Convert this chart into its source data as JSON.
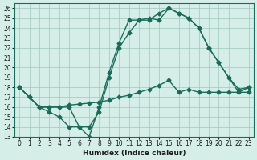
{
  "xlabel": "Humidex (Indice chaleur)",
  "ylabel": "",
  "bg_color": "#d6eee8",
  "line_color": "#1a6b5a",
  "xlim": [
    -0.5,
    23.5
  ],
  "ylim": [
    13,
    26.5
  ],
  "yticks": [
    13,
    14,
    15,
    16,
    17,
    18,
    19,
    20,
    21,
    22,
    23,
    24,
    25,
    26
  ],
  "xticks": [
    0,
    1,
    2,
    3,
    4,
    5,
    6,
    7,
    8,
    9,
    10,
    11,
    12,
    13,
    14,
    15,
    16,
    17,
    18,
    19,
    20,
    21,
    22,
    23
  ],
  "line1_x": [
    0,
    1,
    2,
    3,
    4,
    5,
    6,
    7,
    8,
    9,
    10,
    11,
    12,
    13,
    14,
    15,
    16,
    17,
    18,
    19,
    20,
    21,
    22,
    23
  ],
  "line1_y": [
    18,
    17,
    16,
    16,
    16,
    16,
    14,
    13,
    16,
    19.5,
    22.5,
    24.8,
    24.8,
    25,
    24.8,
    26,
    25.5,
    25,
    24,
    22,
    20.5,
    19,
    17.8,
    18
  ],
  "line2_x": [
    0,
    2,
    3,
    4,
    5,
    6,
    7,
    8,
    9,
    10,
    11,
    12,
    13,
    14,
    15,
    16,
    17,
    18,
    19,
    20,
    21,
    22,
    23
  ],
  "line2_y": [
    18,
    16,
    15.5,
    15,
    14,
    14,
    14,
    15.5,
    19,
    22,
    23.5,
    24.8,
    24.8,
    25.5,
    26,
    25.5,
    25,
    24,
    22,
    20.5,
    19,
    17.5,
    18
  ],
  "line3_x": [
    0,
    1,
    2,
    3,
    4,
    5,
    6,
    7,
    8,
    9,
    10,
    11,
    12,
    13,
    14,
    15,
    16,
    17,
    18,
    19,
    20,
    21,
    22,
    23
  ],
  "line3_y": [
    18,
    17,
    16,
    16,
    16,
    16.2,
    16.3,
    16.4,
    16.5,
    16.7,
    17,
    17.2,
    17.5,
    17.8,
    18.2,
    18.7,
    17.5,
    17.8,
    17.5,
    17.5,
    17.5,
    17.5,
    17.5,
    17.5
  ]
}
